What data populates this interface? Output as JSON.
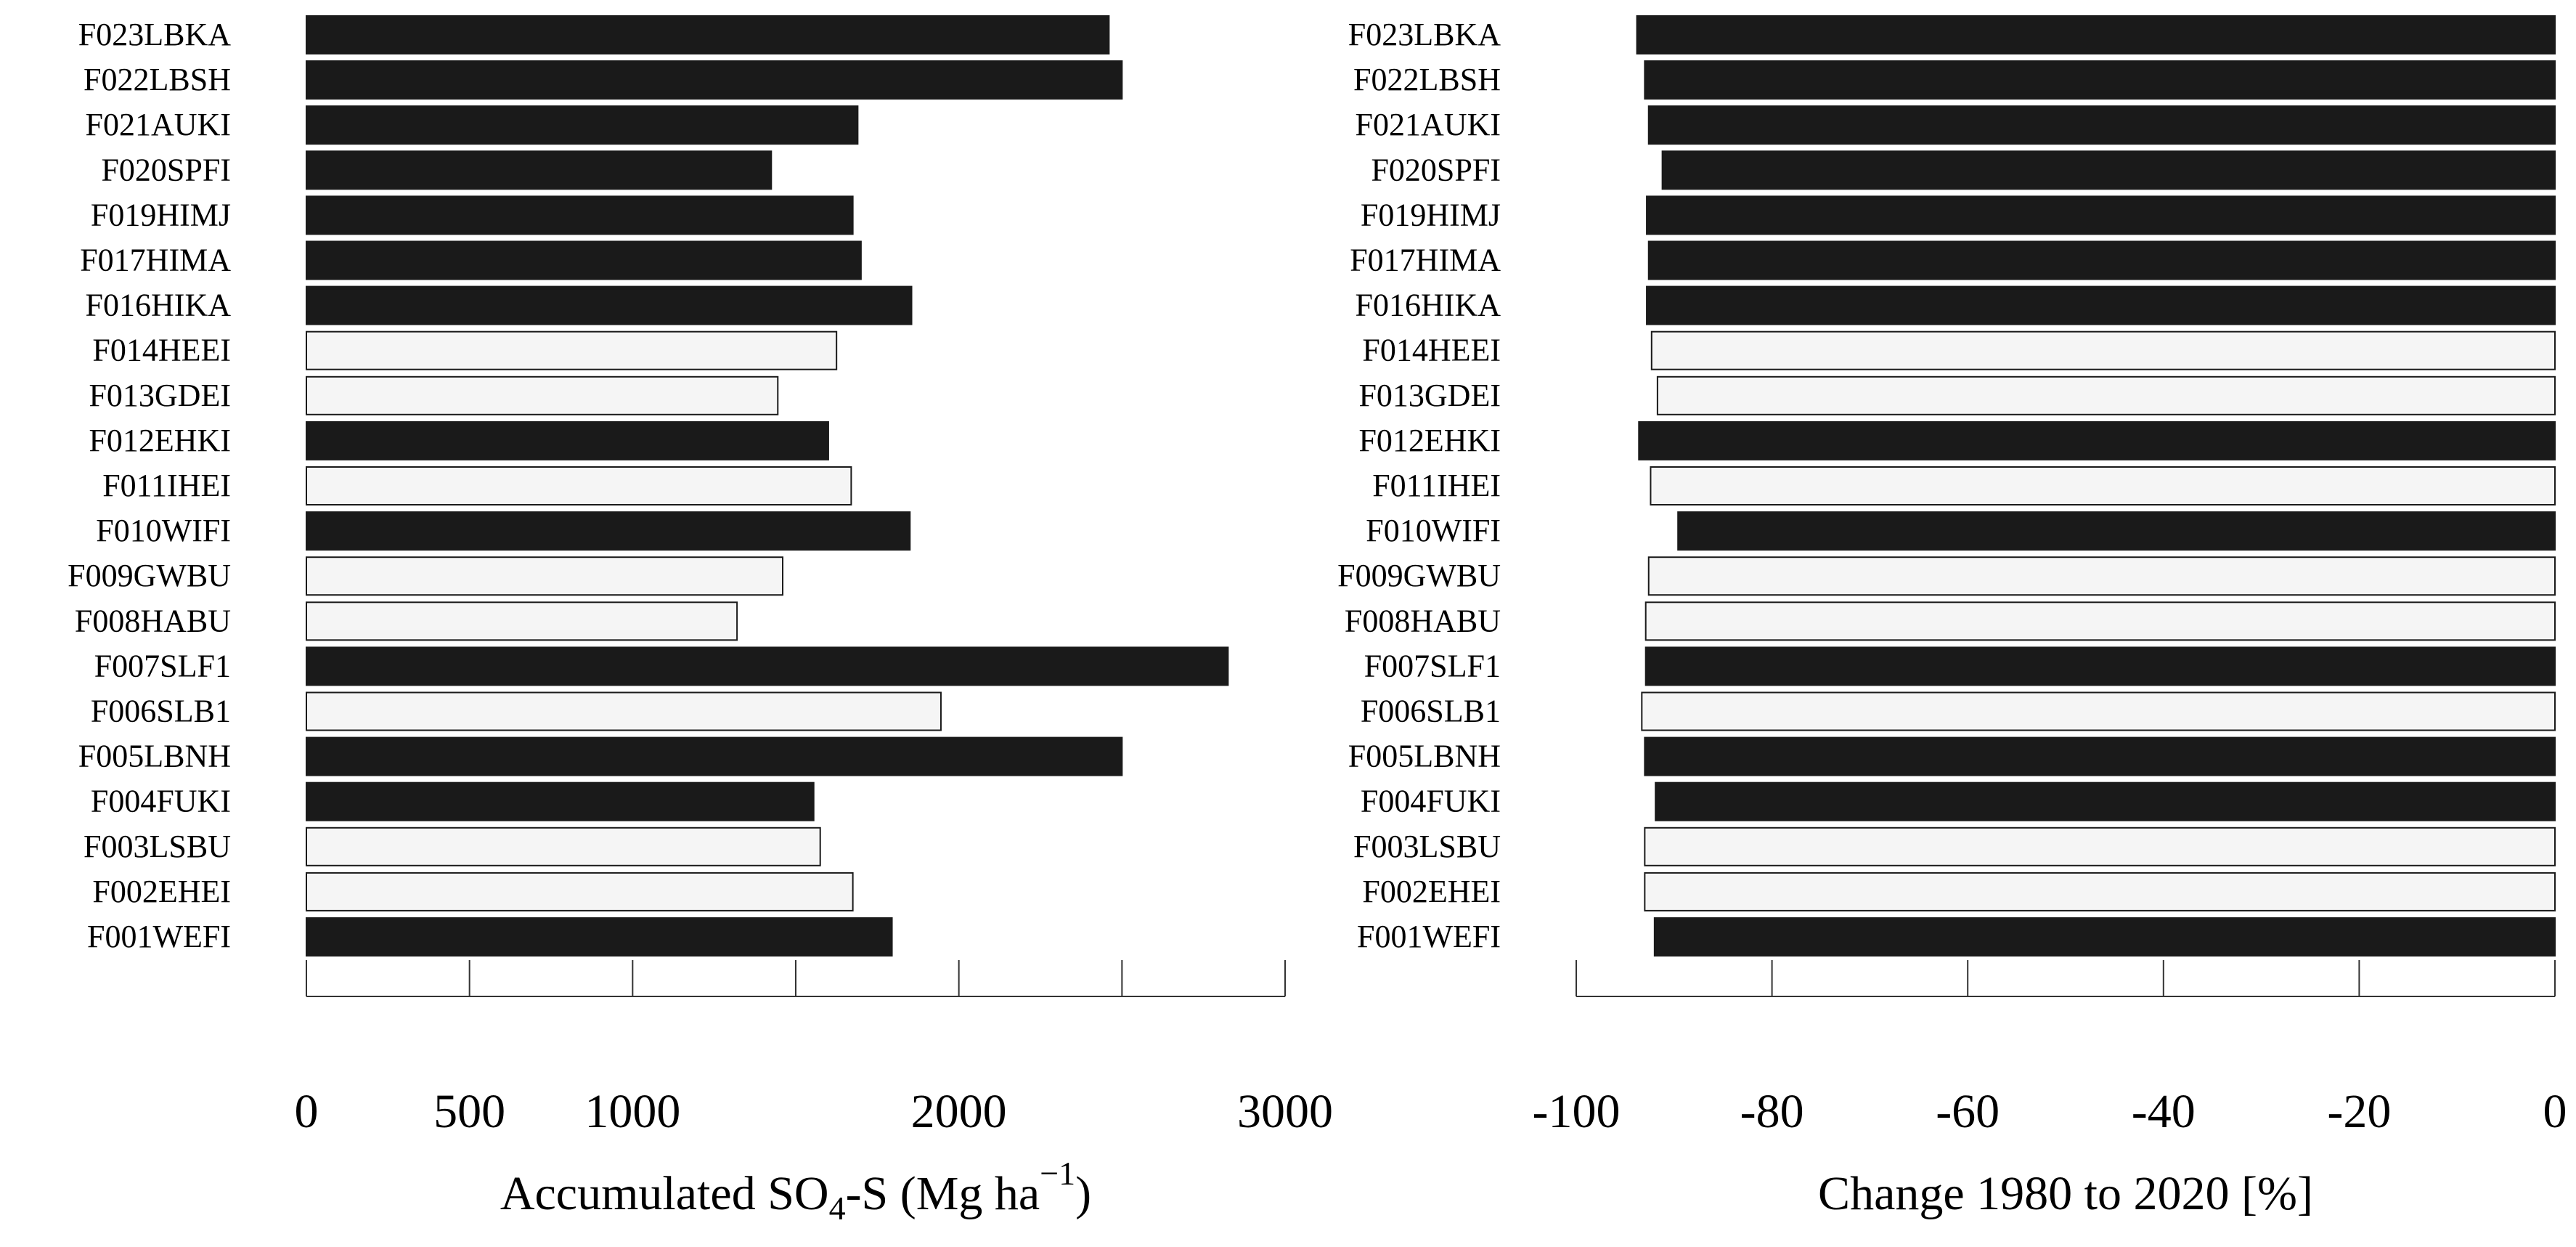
{
  "chart_data": [
    {
      "type": "bar",
      "orientation": "horizontal",
      "xlabel": {
        "prefix": "Accumulated SO",
        "sub": "4",
        "mid": "-S (Mg ha",
        "sup": "−1",
        "suffix": ")"
      },
      "xlim": [
        0,
        3000
      ],
      "xticks": [
        0,
        500,
        1000,
        2000,
        3000
      ],
      "xtick_marks": [
        0,
        500,
        1000,
        1500,
        2000,
        2500,
        3000
      ],
      "categories": [
        "F023LBKA",
        "F022LBSH",
        "F021AUKI",
        "F020SPFI",
        "F019HIMJ",
        "F017HIMA",
        "F016HIKA",
        "F014HEEI",
        "F013GDEI",
        "F012EHKI",
        "F011IHEI",
        "F010WIFI",
        "F009GWBU",
        "F008HABU",
        "F007SLF1",
        "F006SLB1",
        "F005LBNH",
        "F004FUKI",
        "F003LSBU",
        "F002EHEI",
        "F001WEFI"
      ],
      "values": [
        2460,
        2500,
        1690,
        1425,
        1675,
        1700,
        1855,
        1625,
        1445,
        1600,
        1670,
        1850,
        1460,
        1320,
        2825,
        1945,
        2500,
        1555,
        1575,
        1675,
        1795
      ],
      "filled": [
        true,
        true,
        true,
        true,
        true,
        true,
        true,
        false,
        false,
        true,
        false,
        true,
        false,
        false,
        true,
        false,
        true,
        true,
        false,
        false,
        true
      ]
    },
    {
      "type": "bar",
      "orientation": "horizontal",
      "xlabel": {
        "text": "Change 1980 to 2020 [%]"
      },
      "xlim": [
        -100,
        0
      ],
      "xticks": [
        -100,
        -80,
        -60,
        -40,
        -20,
        0
      ],
      "xtick_marks": [
        -100,
        -80,
        -60,
        -40,
        -20,
        0
      ],
      "categories": [
        "F023LBKA",
        "F022LBSH",
        "F021AUKI",
        "F020SPFI",
        "F019HIMJ",
        "F017HIMA",
        "F016HIKA",
        "F014HEEI",
        "F013GDEI",
        "F012EHKI",
        "F011IHEI",
        "F010WIFI",
        "F009GWBU",
        "F008HABU",
        "F007SLF1",
        "F006SLB1",
        "F005LBNH",
        "F004FUKI",
        "F003LSBU",
        "F002EHEI",
        "F001WEFI"
      ],
      "values": [
        -93.8,
        -93.0,
        -92.6,
        -91.2,
        -92.8,
        -92.6,
        -92.8,
        -92.3,
        -91.7,
        -93.6,
        -92.4,
        -89.6,
        -92.6,
        -92.9,
        -92.9,
        -93.3,
        -93.0,
        -91.9,
        -93.0,
        -93.0,
        -92.0
      ],
      "filled": [
        true,
        true,
        true,
        true,
        true,
        true,
        true,
        false,
        false,
        true,
        false,
        true,
        false,
        false,
        true,
        false,
        true,
        true,
        false,
        false,
        true
      ]
    }
  ]
}
